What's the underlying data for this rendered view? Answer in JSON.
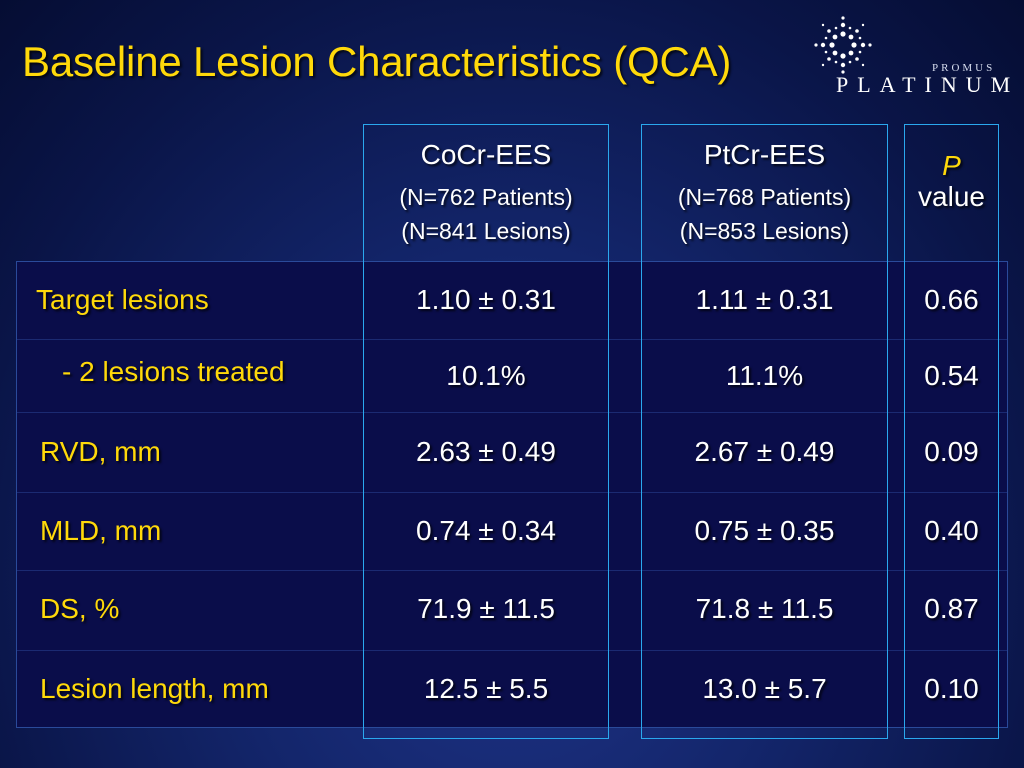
{
  "title": "Baseline Lesion Characteristics (QCA)",
  "logo": {
    "line1": "PROMUS",
    "line2": "PLATINUM"
  },
  "columns": [
    {
      "name": "CoCr-EES",
      "sub1": "(N=762 Patients)",
      "sub2": "(N=841 Lesions)"
    },
    {
      "name": "PtCr-EES",
      "sub1": "(N=768 Patients)",
      "sub2": "(N=853 Lesions)"
    }
  ],
  "pvalue_header": {
    "italic": "P",
    "word": "value"
  },
  "rows": [
    {
      "label": "Target lesions",
      "cocr": "1.10 ± 0.31",
      "ptcr": "1.11 ± 0.31",
      "p": "0.66"
    },
    {
      "label": "- 2 lesions treated",
      "cocr": "10.1%",
      "ptcr": "11.1%",
      "p": "0.54"
    },
    {
      "label": "RVD, mm",
      "cocr": "2.63 ± 0.49",
      "ptcr": "2.67 ± 0.49",
      "p": "0.09"
    },
    {
      "label": "MLD, mm",
      "cocr": "0.74 ± 0.34",
      "ptcr": "0.75 ± 0.35",
      "p": "0.40"
    },
    {
      "label": "DS, %",
      "cocr": "71.9 ± 11.5",
      "ptcr": "71.8 ± 11.5",
      "p": "0.87"
    },
    {
      "label": "Lesion length, mm",
      "cocr": "12.5 ± 5.5",
      "ptcr": "13.0 ± 5.7",
      "p": "0.10"
    }
  ],
  "colors": {
    "title": "#ffd90a",
    "labels": "#ffd90a",
    "values": "#ffffff",
    "column_border": "#2aa8ee",
    "table_fill": "#0a0d4a"
  }
}
